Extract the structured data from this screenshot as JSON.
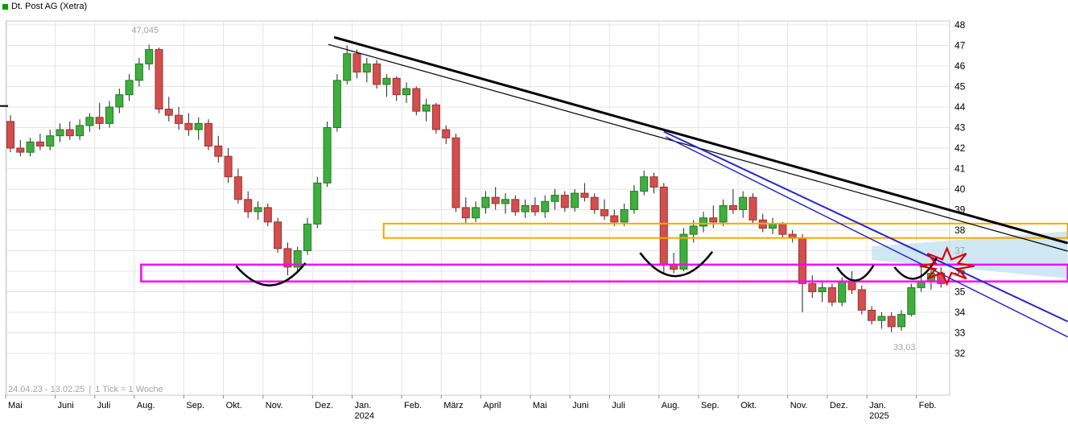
{
  "title": "Dt. Post AG (Xetra)",
  "footer": {
    "range": "24.04.23 - 13.02.25",
    "separator": "|",
    "tick": "1 Tick = 1 Woche"
  },
  "colors": {
    "up": "#3fae3f",
    "up_border": "#1d7a1d",
    "down": "#d24f4f",
    "down_border": "#9e2f2f",
    "wick": "#222222",
    "grid": "#e4e4e4",
    "grid_border": "#c8c8c8",
    "title_square": "#00a000",
    "muted_text": "#a3a3a3",
    "zone_orange": "#f5a800",
    "zone_magenta": "#ff00ff",
    "trend_black": "#000000",
    "trend_blue": "#2626cc",
    "band_blue": "#bfe0ef",
    "star_red": "#dd0000"
  },
  "chart_data": {
    "type": "candlestick",
    "title": "Dt. Post AG (Xetra)",
    "period": "24.04.23 - 13.02.25",
    "interval": "1 Tick = 1 Woche",
    "y_axis": {
      "min": 32,
      "max": 48,
      "ticks": [
        48,
        47,
        46,
        45,
        44,
        43,
        42,
        41,
        40,
        39,
        38,
        37,
        36,
        35,
        34,
        33,
        32
      ]
    },
    "x_axis": {
      "months": [
        {
          "label": "Mai",
          "week": 0
        },
        {
          "label": "Juni",
          "week": 5
        },
        {
          "label": "Juli",
          "week": 9
        },
        {
          "label": "Aug.",
          "week": 13
        },
        {
          "label": "Sep.",
          "week": 18
        },
        {
          "label": "Okt.",
          "week": 22
        },
        {
          "label": "Nov.",
          "week": 26
        },
        {
          "label": "Dez.",
          "week": 31
        },
        {
          "label": "Jan.",
          "week": 35,
          "year": "2024"
        },
        {
          "label": "Feb.",
          "week": 40
        },
        {
          "label": "März",
          "week": 44
        },
        {
          "label": "April",
          "week": 48
        },
        {
          "label": "Mai",
          "week": 53
        },
        {
          "label": "Juni",
          "week": 57
        },
        {
          "label": "Juli",
          "week": 61
        },
        {
          "label": "Aug.",
          "week": 66
        },
        {
          "label": "Sep.",
          "week": 70
        },
        {
          "label": "Okt.",
          "week": 74
        },
        {
          "label": "Nov.",
          "week": 79
        },
        {
          "label": "Dez.",
          "week": 83
        },
        {
          "label": "Jan.",
          "week": 87,
          "year": "2025"
        },
        {
          "label": "Feb.",
          "week": 92
        }
      ]
    },
    "high_label": {
      "text": "47,045",
      "week": 13.6,
      "price": 47.6
    },
    "low_label": {
      "text": "33,03",
      "week": 90.3,
      "price": 32.15
    },
    "candles": [
      [
        43.3,
        43.6,
        41.8,
        42.0
      ],
      [
        42.0,
        42.4,
        41.6,
        41.8
      ],
      [
        41.8,
        42.5,
        41.6,
        42.3
      ],
      [
        42.3,
        42.7,
        41.9,
        42.1
      ],
      [
        42.1,
        42.9,
        41.9,
        42.6
      ],
      [
        42.6,
        43.2,
        42.3,
        42.9
      ],
      [
        42.9,
        43.3,
        42.4,
        42.6
      ],
      [
        42.6,
        43.4,
        42.4,
        43.1
      ],
      [
        43.1,
        43.7,
        42.8,
        43.5
      ],
      [
        43.5,
        44.2,
        42.9,
        43.2
      ],
      [
        43.2,
        44.3,
        43.0,
        44.0
      ],
      [
        44.0,
        44.9,
        43.7,
        44.6
      ],
      [
        44.6,
        45.6,
        44.3,
        45.3
      ],
      [
        45.3,
        46.4,
        45.0,
        46.1
      ],
      [
        46.1,
        47.045,
        45.8,
        46.8
      ],
      [
        46.8,
        46.9,
        43.7,
        43.9
      ],
      [
        43.9,
        44.5,
        43.3,
        43.6
      ],
      [
        43.6,
        44.0,
        42.9,
        43.2
      ],
      [
        43.2,
        43.7,
        42.6,
        42.9
      ],
      [
        42.9,
        43.5,
        42.4,
        43.2
      ],
      [
        43.2,
        43.4,
        41.9,
        42.1
      ],
      [
        42.1,
        42.6,
        41.3,
        41.6
      ],
      [
        41.6,
        42.0,
        40.3,
        40.6
      ],
      [
        40.6,
        41.0,
        39.3,
        39.5
      ],
      [
        39.5,
        39.9,
        38.6,
        38.9
      ],
      [
        38.9,
        39.4,
        38.5,
        39.1
      ],
      [
        39.1,
        39.3,
        38.2,
        38.4
      ],
      [
        38.4,
        38.6,
        36.9,
        37.1
      ],
      [
        37.1,
        37.4,
        35.8,
        36.2
      ],
      [
        36.2,
        37.2,
        35.9,
        37.0
      ],
      [
        37.0,
        38.6,
        36.8,
        38.3
      ],
      [
        38.3,
        40.6,
        38.1,
        40.3
      ],
      [
        40.3,
        43.3,
        40.1,
        43.0
      ],
      [
        43.0,
        45.6,
        42.8,
        45.3
      ],
      [
        45.3,
        47.0,
        45.1,
        46.6
      ],
      [
        46.6,
        46.8,
        45.4,
        45.7
      ],
      [
        45.7,
        46.4,
        45.2,
        46.1
      ],
      [
        46.1,
        46.3,
        44.9,
        45.1
      ],
      [
        45.1,
        45.6,
        44.5,
        45.4
      ],
      [
        45.4,
        45.5,
        44.3,
        44.6
      ],
      [
        44.6,
        45.2,
        44.2,
        44.9
      ],
      [
        44.9,
        45.0,
        43.6,
        43.8
      ],
      [
        43.8,
        44.4,
        43.3,
        44.1
      ],
      [
        44.1,
        44.2,
        42.7,
        42.9
      ],
      [
        42.9,
        43.1,
        42.2,
        42.5
      ],
      [
        42.5,
        42.7,
        38.9,
        39.1
      ],
      [
        39.1,
        39.6,
        38.3,
        38.6
      ],
      [
        38.6,
        39.4,
        38.4,
        39.1
      ],
      [
        39.1,
        39.9,
        38.8,
        39.6
      ],
      [
        39.6,
        40.1,
        39.0,
        39.3
      ],
      [
        39.3,
        39.8,
        38.8,
        39.5
      ],
      [
        39.5,
        39.7,
        38.7,
        38.9
      ],
      [
        38.9,
        39.5,
        38.6,
        39.2
      ],
      [
        39.2,
        39.6,
        38.7,
        38.9
      ],
      [
        38.9,
        39.7,
        38.6,
        39.4
      ],
      [
        39.4,
        40.0,
        39.0,
        39.7
      ],
      [
        39.7,
        39.9,
        38.9,
        39.1
      ],
      [
        39.1,
        40.0,
        38.9,
        39.8
      ],
      [
        39.8,
        40.3,
        39.4,
        39.6
      ],
      [
        39.6,
        39.8,
        38.8,
        39.0
      ],
      [
        39.0,
        39.5,
        38.5,
        38.7
      ],
      [
        38.7,
        39.0,
        38.2,
        38.4
      ],
      [
        38.4,
        39.3,
        38.2,
        39.0
      ],
      [
        39.0,
        40.2,
        38.8,
        39.9
      ],
      [
        39.9,
        40.9,
        39.7,
        40.6
      ],
      [
        40.6,
        40.8,
        39.8,
        40.1
      ],
      [
        40.1,
        40.3,
        35.9,
        36.3
      ],
      [
        36.3,
        36.9,
        35.9,
        36.1
      ],
      [
        36.1,
        38.1,
        36.0,
        37.8
      ],
      [
        37.8,
        38.5,
        37.4,
        38.2
      ],
      [
        38.2,
        38.9,
        37.9,
        38.6
      ],
      [
        38.6,
        39.2,
        38.1,
        38.4
      ],
      [
        38.4,
        39.5,
        38.2,
        39.2
      ],
      [
        39.2,
        40.0,
        38.8,
        39.0
      ],
      [
        39.0,
        39.9,
        38.6,
        39.6
      ],
      [
        39.6,
        39.8,
        38.3,
        38.5
      ],
      [
        38.5,
        38.8,
        37.9,
        38.1
      ],
      [
        38.1,
        38.6,
        37.8,
        38.3
      ],
      [
        38.3,
        38.4,
        37.6,
        37.8
      ],
      [
        37.8,
        38.0,
        37.4,
        37.6
      ],
      [
        37.6,
        37.8,
        34.0,
        35.4
      ],
      [
        35.4,
        35.8,
        34.7,
        35.0
      ],
      [
        35.0,
        35.5,
        34.5,
        35.2
      ],
      [
        35.2,
        35.4,
        34.3,
        34.5
      ],
      [
        34.5,
        35.7,
        34.3,
        35.5
      ],
      [
        35.5,
        36.0,
        34.9,
        35.1
      ],
      [
        35.1,
        35.3,
        33.9,
        34.1
      ],
      [
        34.1,
        34.3,
        33.4,
        33.6
      ],
      [
        33.6,
        34.0,
        33.2,
        33.8
      ],
      [
        33.8,
        34.0,
        33.03,
        33.3
      ],
      [
        33.3,
        34.1,
        33.1,
        33.9
      ],
      [
        33.9,
        35.4,
        33.8,
        35.2
      ],
      [
        35.2,
        36.3,
        35.0,
        35.5
      ],
      [
        35.5,
        36.1,
        35.1,
        35.9
      ],
      [
        35.9,
        36.2,
        35.2,
        35.4
      ]
    ],
    "annotations": {
      "rect_zones": [
        {
          "name": "resistance-zone-orange",
          "week_start": 37.7,
          "week_end": 106.8,
          "price_top": 38.32,
          "price_bottom": 37.62,
          "color": "#f5a800",
          "width": 2
        },
        {
          "name": "support-zone-magenta",
          "week_start": 13.2,
          "week_end": 106.8,
          "price_top": 36.32,
          "price_bottom": 35.5,
          "color": "#ff00ff",
          "width": 2.5
        }
      ],
      "trend_lines": [
        {
          "name": "downtrend-line-thin",
          "w1": 32.1,
          "p1": 47.05,
          "w2": 106.8,
          "p2": 36.98,
          "color": "#000000",
          "width": 1.2
        },
        {
          "name": "downtrend-line-thick",
          "w1": 32.7,
          "p1": 47.4,
          "w2": 106.8,
          "p2": 37.37,
          "color": "#000000",
          "width": 3
        },
        {
          "name": "downtrend-line-blue-upper",
          "w1": 66.0,
          "p1": 42.8,
          "w2": 106.8,
          "p2": 33.55,
          "color": "#2626cc",
          "width": 2
        },
        {
          "name": "downtrend-line-blue-lower",
          "w1": 66.2,
          "p1": 42.55,
          "w2": 106.8,
          "p2": 32.8,
          "color": "#2626cc",
          "width": 1.5
        }
      ],
      "shaded_band": {
        "name": "target-zone-lightblue",
        "points": [
          [
            87,
            37.2
          ],
          [
            106.8,
            37.95
          ],
          [
            106.8,
            35.65
          ],
          [
            87,
            36.55
          ]
        ],
        "fill": "#bfe0ef",
        "opacity": 0.75
      },
      "arcs": [
        {
          "w1": 22.8,
          "p1": 36.25,
          "wc": 26.3,
          "pc": 34.3,
          "w2": 29.8,
          "p2": 36.4
        },
        {
          "w1": 63.6,
          "p1": 36.9,
          "wc": 67.2,
          "pc": 34.6,
          "w2": 70.9,
          "p2": 36.95
        },
        {
          "w1": 83.5,
          "p1": 36.2,
          "wc": 85.4,
          "pc": 34.85,
          "w2": 87.2,
          "p2": 36.3
        },
        {
          "w1": 89.3,
          "p1": 36.2,
          "wc": 91.5,
          "pc": 34.85,
          "w2": 93.6,
          "p2": 36.7
        }
      ],
      "star": {
        "name": "breakout-star",
        "week": 94.6,
        "price": 36.25,
        "points": 8,
        "outer_rx": 34,
        "outer_ry": 22,
        "inner_rx": 15,
        "inner_ry": 9,
        "color": "#dd0000",
        "width": 2.2
      },
      "left_tick": {
        "price": 44.05
      }
    }
  }
}
